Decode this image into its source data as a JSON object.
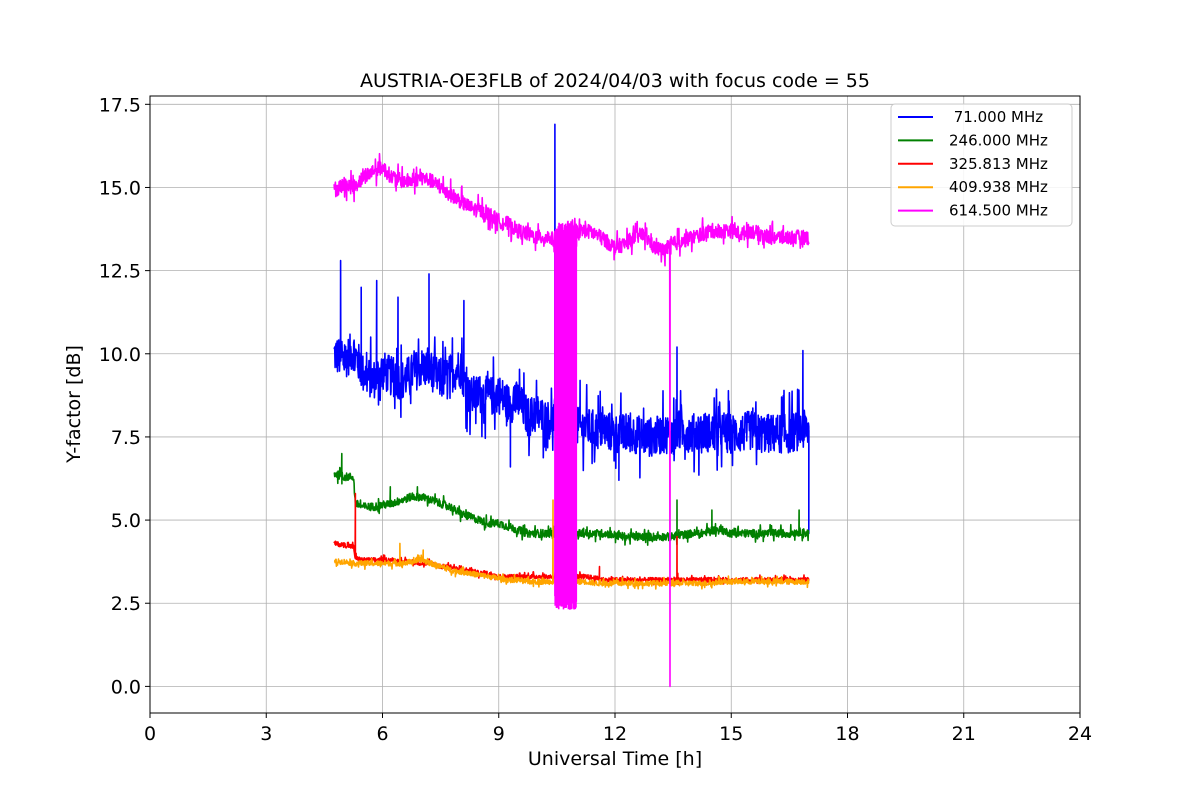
{
  "chart_data": {
    "type": "line",
    "title": "AUSTRIA-OE3FLB of 2024/04/03 with focus code = 55",
    "xlabel": "Universal Time [h]",
    "ylabel": "Y-factor [dB]",
    "xlim": [
      0,
      24
    ],
    "ylim": [
      -0.8,
      17.75
    ],
    "x_ticks": [
      0,
      3,
      6,
      9,
      12,
      15,
      18,
      21,
      24
    ],
    "y_ticks": [
      0.0,
      2.5,
      5.0,
      7.5,
      10.0,
      12.5,
      15.0,
      17.5
    ],
    "x_tick_labels": [
      "0",
      "3",
      "6",
      "9",
      "12",
      "15",
      "18",
      "21",
      "24"
    ],
    "y_tick_labels": [
      "0.0",
      "2.5",
      "5.0",
      "7.5",
      "10.0",
      "12.5",
      "15.0",
      "17.5"
    ],
    "grid": true,
    "legend_position": "top-right",
    "series": [
      {
        "name": " 71.000 MHz",
        "color": "#0000ff",
        "x": [
          4.75,
          5.0,
          5.25,
          5.5,
          5.75,
          6.0,
          6.25,
          6.5,
          6.75,
          7.0,
          7.25,
          7.5,
          7.75,
          8.0,
          8.25,
          8.5,
          8.75,
          9.0,
          9.25,
          9.5,
          9.75,
          10.0,
          10.25,
          10.5,
          10.75,
          11.0,
          11.25,
          11.5,
          11.75,
          12.0,
          12.25,
          12.5,
          12.75,
          13.0,
          13.25,
          13.5,
          13.75,
          14.0,
          14.25,
          14.5,
          14.75,
          15.0,
          15.25,
          15.5,
          15.75,
          16.0,
          16.25,
          16.5,
          16.75,
          17.0
        ],
        "values": [
          10.0,
          9.8,
          10.1,
          9.4,
          9.2,
          9.5,
          9.3,
          9.2,
          9.4,
          9.6,
          9.5,
          9.2,
          9.4,
          9.6,
          8.7,
          8.8,
          8.7,
          8.8,
          8.5,
          8.6,
          8.1,
          8.2,
          8.0,
          8.1,
          7.9,
          7.8,
          7.8,
          7.7,
          7.7,
          7.6,
          7.6,
          7.6,
          7.5,
          7.5,
          7.6,
          7.6,
          7.7,
          7.6,
          7.7,
          7.6,
          7.7,
          7.6,
          7.6,
          7.7,
          7.6,
          7.6,
          7.6,
          7.6,
          7.7,
          7.7
        ],
        "noise": 0.6,
        "spikes": [
          [
            4.92,
            12.8
          ],
          [
            5.45,
            12.0
          ],
          [
            5.85,
            12.2
          ],
          [
            6.4,
            11.7
          ],
          [
            7.2,
            12.4
          ],
          [
            8.1,
            11.6
          ],
          [
            10.45,
            16.9
          ],
          [
            11.1,
            9.2
          ],
          [
            13.6,
            10.2
          ],
          [
            16.85,
            10.1
          ],
          [
            17.0,
            4.6
          ],
          [
            9.3,
            6.6
          ],
          [
            12.1,
            6.2
          ]
        ]
      },
      {
        "name": "246.000 MHz",
        "color": "#008000",
        "x": [
          4.75,
          5.0,
          5.25,
          5.3,
          5.5,
          5.75,
          6.0,
          6.25,
          6.5,
          6.75,
          7.0,
          7.25,
          7.5,
          7.75,
          8.0,
          8.25,
          8.5,
          8.75,
          9.0,
          9.25,
          9.5,
          9.75,
          10.0,
          10.25,
          10.5,
          10.75,
          11.0,
          11.25,
          11.5,
          11.75,
          12.0,
          12.25,
          12.5,
          12.75,
          13.0,
          13.25,
          13.5,
          13.75,
          14.0,
          14.25,
          14.5,
          14.75,
          15.0,
          15.25,
          15.5,
          15.75,
          16.0,
          16.25,
          16.5,
          16.75,
          17.0
        ],
        "values": [
          6.4,
          6.3,
          6.3,
          5.5,
          5.4,
          5.4,
          5.45,
          5.5,
          5.6,
          5.7,
          5.7,
          5.6,
          5.5,
          5.4,
          5.2,
          5.1,
          5.0,
          4.9,
          4.9,
          4.8,
          4.7,
          4.6,
          4.6,
          4.6,
          4.6,
          4.6,
          4.6,
          4.6,
          4.6,
          4.6,
          4.55,
          4.5,
          4.5,
          4.5,
          4.5,
          4.5,
          4.5,
          4.55,
          4.6,
          4.6,
          4.7,
          4.7,
          4.6,
          4.6,
          4.6,
          4.6,
          4.6,
          4.6,
          4.6,
          4.65,
          4.6
        ],
        "noise": 0.12,
        "spikes": [
          [
            4.95,
            7.0
          ],
          [
            6.2,
            6.0
          ],
          [
            6.9,
            6.0
          ],
          [
            13.6,
            5.6
          ],
          [
            14.5,
            5.3
          ],
          [
            16.75,
            5.3
          ]
        ]
      },
      {
        "name": "325.813 MHz",
        "color": "#ff0000",
        "x": [
          4.75,
          5.0,
          5.25,
          5.3,
          5.5,
          5.75,
          6.0,
          6.25,
          6.5,
          6.75,
          7.0,
          7.25,
          7.5,
          7.75,
          8.0,
          8.25,
          8.5,
          8.75,
          9.0,
          9.25,
          9.5,
          9.75,
          10.0,
          10.25,
          10.5,
          10.75,
          11.0,
          11.25,
          11.5,
          11.75,
          12.0,
          12.25,
          12.5,
          12.75,
          13.0,
          13.25,
          13.5,
          13.75,
          14.0,
          14.25,
          14.5,
          14.75,
          15.0,
          15.25,
          15.5,
          15.75,
          16.0,
          16.25,
          16.5,
          16.75,
          17.0
        ],
        "values": [
          4.3,
          4.25,
          4.2,
          3.85,
          3.8,
          3.8,
          3.8,
          3.8,
          3.75,
          3.75,
          3.7,
          3.7,
          3.6,
          3.6,
          3.5,
          3.5,
          3.4,
          3.4,
          3.3,
          3.3,
          3.3,
          3.3,
          3.3,
          3.3,
          3.3,
          3.3,
          3.3,
          3.3,
          3.25,
          3.2,
          3.2,
          3.2,
          3.2,
          3.2,
          3.2,
          3.2,
          3.2,
          3.2,
          3.2,
          3.2,
          3.2,
          3.2,
          3.2,
          3.2,
          3.2,
          3.2,
          3.2,
          3.2,
          3.2,
          3.2,
          3.2
        ],
        "noise": 0.07,
        "spikes": [
          [
            5.3,
            5.8
          ],
          [
            5.32,
            4.0
          ],
          [
            11.6,
            3.6
          ],
          [
            13.6,
            4.5
          ],
          [
            13.62,
            3.4
          ]
        ]
      },
      {
        "name": "409.938 MHz",
        "color": "#ffa500",
        "x": [
          4.75,
          5.0,
          5.25,
          5.5,
          5.75,
          6.0,
          6.25,
          6.5,
          6.75,
          7.0,
          7.25,
          7.5,
          7.75,
          8.0,
          8.25,
          8.5,
          8.75,
          9.0,
          9.25,
          9.5,
          9.75,
          10.0,
          10.25,
          10.5,
          10.75,
          11.0,
          11.25,
          11.5,
          11.75,
          12.0,
          12.25,
          12.5,
          12.75,
          13.0,
          13.25,
          13.5,
          13.75,
          14.0,
          14.25,
          14.5,
          14.75,
          15.0,
          15.25,
          15.5,
          15.75,
          16.0,
          16.25,
          16.5,
          16.75,
          17.0
        ],
        "values": [
          3.75,
          3.75,
          3.7,
          3.7,
          3.7,
          3.7,
          3.7,
          3.7,
          3.75,
          3.8,
          3.7,
          3.6,
          3.5,
          3.45,
          3.4,
          3.35,
          3.3,
          3.25,
          3.2,
          3.2,
          3.15,
          3.15,
          3.15,
          3.15,
          3.15,
          3.15,
          3.15,
          3.1,
          3.1,
          3.1,
          3.1,
          3.1,
          3.1,
          3.1,
          3.1,
          3.1,
          3.1,
          3.1,
          3.1,
          3.1,
          3.15,
          3.15,
          3.15,
          3.15,
          3.15,
          3.15,
          3.15,
          3.15,
          3.15,
          3.15
        ],
        "noise": 0.08,
        "spikes": [
          [
            6.45,
            4.3
          ],
          [
            7.05,
            4.1
          ],
          [
            10.4,
            5.6
          ],
          [
            10.42,
            3.2
          ]
        ]
      },
      {
        "name": "614.500 MHz",
        "color": "#ff00ff",
        "x": [
          4.75,
          5.0,
          5.25,
          5.5,
          5.75,
          6.0,
          6.25,
          6.5,
          6.75,
          7.0,
          7.25,
          7.5,
          7.75,
          8.0,
          8.25,
          8.5,
          8.75,
          9.0,
          9.25,
          9.5,
          9.75,
          10.0,
          10.25,
          10.5,
          10.75,
          11.0,
          11.25,
          11.5,
          11.75,
          12.0,
          12.25,
          12.5,
          12.75,
          13.0,
          13.25,
          13.5,
          13.75,
          14.0,
          14.25,
          14.5,
          14.75,
          15.0,
          15.25,
          15.5,
          15.75,
          16.0,
          16.25,
          16.5,
          16.75,
          17.0
        ],
        "values": [
          14.9,
          15.1,
          15.0,
          15.3,
          15.5,
          15.6,
          15.3,
          15.2,
          15.2,
          15.3,
          15.2,
          15.0,
          14.8,
          14.6,
          14.4,
          14.3,
          14.2,
          14.0,
          13.9,
          13.7,
          13.6,
          13.5,
          13.5,
          13.4,
          13.5,
          13.7,
          13.7,
          13.6,
          13.4,
          13.2,
          13.3,
          13.5,
          13.6,
          13.2,
          13.1,
          13.3,
          13.4,
          13.5,
          13.6,
          13.7,
          13.7,
          13.7,
          13.6,
          13.7,
          13.6,
          13.5,
          13.5,
          13.5,
          13.5,
          13.5
        ],
        "noise": 0.22,
        "spikes": [
          [
            13.42,
            0.0
          ],
          [
            13.44,
            13.0
          ]
        ],
        "burst": [
          10.45,
          11.0,
          2.3,
          14.0
        ]
      }
    ]
  }
}
